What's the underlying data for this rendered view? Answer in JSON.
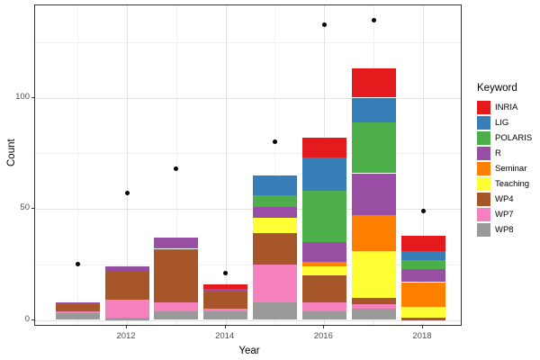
{
  "chart_data": {
    "type": "bar",
    "stacked": true,
    "title": "",
    "xlabel": "Year",
    "ylabel": "Count",
    "legend_title": "Keyword",
    "x_years": [
      2011,
      2012,
      2013,
      2014,
      2015,
      2016,
      2017,
      2018
    ],
    "series": [
      {
        "name": "INRIA",
        "color": "#E41A1C",
        "values": [
          0,
          0,
          0,
          2,
          0,
          9,
          13,
          7
        ]
      },
      {
        "name": "LIG",
        "color": "#377EB8",
        "values": [
          0,
          0,
          0,
          0,
          9,
          15,
          11,
          4
        ]
      },
      {
        "name": "POLARIS",
        "color": "#4DAF4A",
        "values": [
          0,
          0,
          0,
          0,
          5,
          23,
          23,
          4
        ]
      },
      {
        "name": "R",
        "color": "#984EA3",
        "values": [
          1,
          2,
          5,
          1,
          5,
          9,
          19,
          6
        ]
      },
      {
        "name": "Seminar",
        "color": "#FF7F00",
        "values": [
          0,
          0,
          0,
          0,
          0,
          2,
          16,
          11
        ]
      },
      {
        "name": "Teaching",
        "color": "#FFFF33",
        "values": [
          0,
          0,
          0,
          0,
          7,
          4,
          21,
          5
        ]
      },
      {
        "name": "WP4",
        "color": "#A65628",
        "values": [
          3,
          13,
          24,
          8,
          14,
          12,
          3,
          1
        ]
      },
      {
        "name": "WP7",
        "color": "#F781BF",
        "values": [
          1,
          8,
          4,
          1,
          17,
          4,
          2,
          0
        ]
      },
      {
        "name": "WP8",
        "color": "#999999",
        "values": [
          3,
          1,
          4,
          4,
          8,
          4,
          5,
          0
        ]
      }
    ],
    "stack_order_bottom_to_top": [
      "WP8",
      "WP7",
      "WP4",
      "Teaching",
      "Seminar",
      "R",
      "POLARIS",
      "LIG",
      "INRIA"
    ],
    "points_overlay": {
      "name": "yearly-total-dot",
      "color": "#000000",
      "values": [
        25,
        57,
        68,
        21,
        80,
        133,
        135,
        49
      ]
    },
    "yticks": [
      0,
      50,
      100
    ],
    "y_minor": [
      25,
      75,
      125
    ],
    "xticks": [
      2012,
      2014,
      2016,
      2018
    ],
    "x_minor_years": [
      2011,
      2013,
      2015,
      2017
    ],
    "ylim": [
      0,
      141
    ],
    "grid": true,
    "legend_position": "right"
  }
}
